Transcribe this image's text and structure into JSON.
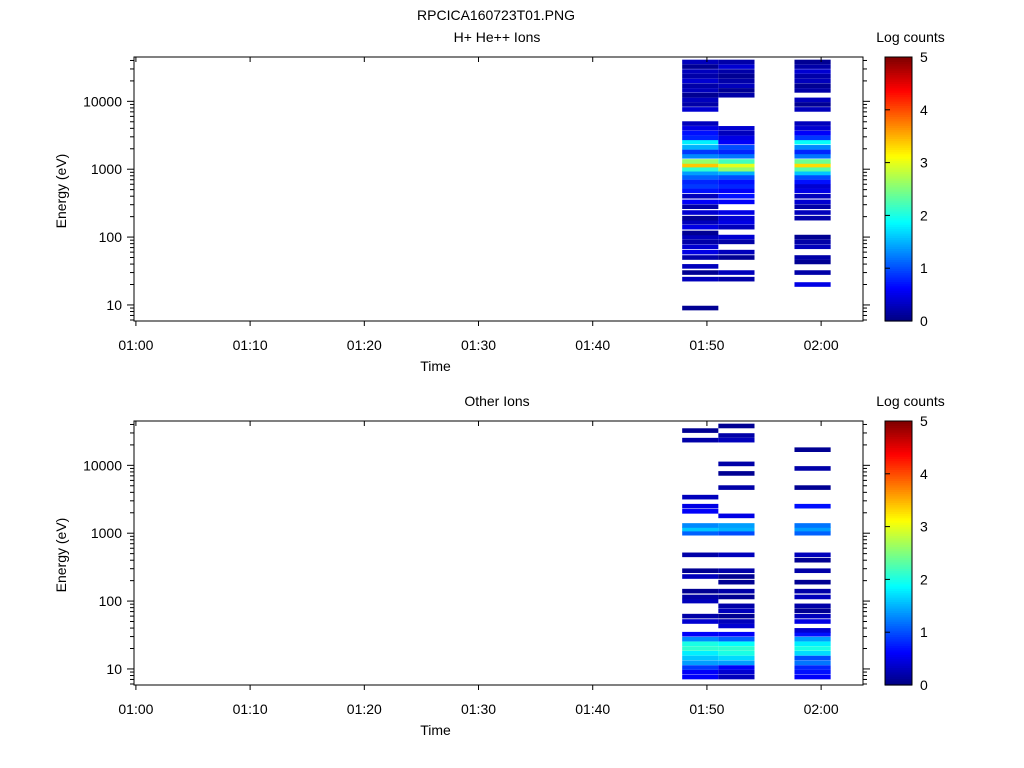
{
  "figure_title": "RPCICA160723T01.PNG",
  "colors": {
    "colormap": [
      "#00007f",
      "#0000ff",
      "#007fff",
      "#00ffff",
      "#7fff7f",
      "#ffff00",
      "#ff7f00",
      "#ff0000",
      "#7f0000"
    ],
    "axes": "#000000",
    "background": "#ffffff"
  },
  "chart_data": [
    {
      "type": "heatmap",
      "title": "H+ He++ Ions",
      "xlabel": "Time",
      "ylabel": "Energy (eV)",
      "x_scale": "time",
      "y_scale": "log",
      "xlim": [
        "00:59:50",
        "02:03:40"
      ],
      "ylim": [
        5.8,
        45000
      ],
      "x_ticks": [
        "01:00",
        "01:10",
        "01:20",
        "01:30",
        "01:40",
        "01:50",
        "02:00"
      ],
      "y_ticks": [
        10,
        100,
        1000,
        10000
      ],
      "y_tick_labels": [
        "10",
        "100",
        "1000",
        "10000"
      ],
      "colorbar": {
        "label": "Log counts",
        "range": [
          0,
          5
        ],
        "ticks": [
          "0",
          "1",
          "2",
          "3",
          "4",
          "5"
        ]
      },
      "columns": [
        {
          "t0": "01:47:50",
          "t1": "01:51:00",
          "bins": [
            {
              "e": 9,
              "v": 0.1
            },
            {
              "e": 24,
              "v": 0.3
            },
            {
              "e": 30,
              "v": 0.1
            },
            {
              "e": 37,
              "v": 0.3
            },
            {
              "e": 50,
              "v": 0.2
            },
            {
              "e": 60,
              "v": 0.5
            },
            {
              "e": 72,
              "v": 0.4
            },
            {
              "e": 85,
              "v": 0.2
            },
            {
              "e": 100,
              "v": 0.3
            },
            {
              "e": 115,
              "v": 0.1
            },
            {
              "e": 140,
              "v": 0.5
            },
            {
              "e": 165,
              "v": 0.3
            },
            {
              "e": 190,
              "v": 0.1
            },
            {
              "e": 230,
              "v": 0.4
            },
            {
              "e": 280,
              "v": 0.2
            },
            {
              "e": 330,
              "v": 0.6
            },
            {
              "e": 400,
              "v": 0.3
            },
            {
              "e": 480,
              "v": 0.7
            },
            {
              "e": 560,
              "v": 0.9
            },
            {
              "e": 650,
              "v": 0.8
            },
            {
              "e": 760,
              "v": 1.1
            },
            {
              "e": 880,
              "v": 1.4
            },
            {
              "e": 1000,
              "v": 2.1
            },
            {
              "e": 1150,
              "v": 3.4
            },
            {
              "e": 1300,
              "v": 2.6
            },
            {
              "e": 1550,
              "v": 1.3
            },
            {
              "e": 1800,
              "v": 0.9
            },
            {
              "e": 2100,
              "v": 1.5
            },
            {
              "e": 2500,
              "v": 1.8
            },
            {
              "e": 2900,
              "v": 0.8
            },
            {
              "e": 3400,
              "v": 0.7
            },
            {
              "e": 4000,
              "v": 0.5
            },
            {
              "e": 4700,
              "v": 0.3
            },
            {
              "e": 7600,
              "v": 0.4
            },
            {
              "e": 9000,
              "v": 0.2
            },
            {
              "e": 10500,
              "v": 0.3
            },
            {
              "e": 12300,
              "v": 0.1
            },
            {
              "e": 14500,
              "v": 0.3
            },
            {
              "e": 17000,
              "v": 0.2
            },
            {
              "e": 20000,
              "v": 0.4
            },
            {
              "e": 23500,
              "v": 0.2
            },
            {
              "e": 27500,
              "v": 0.3
            },
            {
              "e": 32500,
              "v": 0.1
            },
            {
              "e": 38000,
              "v": 0.3
            }
          ]
        },
        {
          "t0": "01:51:00",
          "t1": "01:54:10",
          "bins": [
            {
              "e": 24,
              "v": 0.2
            },
            {
              "e": 30,
              "v": 0.3
            },
            {
              "e": 50,
              "v": 0.1
            },
            {
              "e": 60,
              "v": 0.3
            },
            {
              "e": 85,
              "v": 0.2
            },
            {
              "e": 100,
              "v": 0.4
            },
            {
              "e": 140,
              "v": 0.3
            },
            {
              "e": 165,
              "v": 0.5
            },
            {
              "e": 190,
              "v": 0.4
            },
            {
              "e": 230,
              "v": 0.5
            },
            {
              "e": 330,
              "v": 0.6
            },
            {
              "e": 400,
              "v": 0.7
            },
            {
              "e": 480,
              "v": 0.6
            },
            {
              "e": 560,
              "v": 0.8
            },
            {
              "e": 650,
              "v": 0.7
            },
            {
              "e": 760,
              "v": 1.0
            },
            {
              "e": 880,
              "v": 1.5
            },
            {
              "e": 1000,
              "v": 2.6
            },
            {
              "e": 1150,
              "v": 3.0
            },
            {
              "e": 1300,
              "v": 2.2
            },
            {
              "e": 1550,
              "v": 1.2
            },
            {
              "e": 1800,
              "v": 0.8
            },
            {
              "e": 2100,
              "v": 1.0
            },
            {
              "e": 2500,
              "v": 0.6
            },
            {
              "e": 2900,
              "v": 0.5
            },
            {
              "e": 3400,
              "v": 0.3
            },
            {
              "e": 4000,
              "v": 0.4
            },
            {
              "e": 12300,
              "v": 0.2
            },
            {
              "e": 14500,
              "v": 0.1
            },
            {
              "e": 17000,
              "v": 0.3
            },
            {
              "e": 20000,
              "v": 0.2
            },
            {
              "e": 23500,
              "v": 0.1
            },
            {
              "e": 27500,
              "v": 0.2
            },
            {
              "e": 32500,
              "v": 0.4
            },
            {
              "e": 38000,
              "v": 0.2
            }
          ]
        },
        {
          "t0": "01:57:40",
          "t1": "02:00:50",
          "bins": [
            {
              "e": 20,
              "v": 0.5
            },
            {
              "e": 30,
              "v": 0.2
            },
            {
              "e": 43,
              "v": 0.1
            },
            {
              "e": 50,
              "v": 0.2
            },
            {
              "e": 72,
              "v": 0.3
            },
            {
              "e": 85,
              "v": 0.2
            },
            {
              "e": 100,
              "v": 0.1
            },
            {
              "e": 190,
              "v": 0.2
            },
            {
              "e": 230,
              "v": 0.3
            },
            {
              "e": 280,
              "v": 0.2
            },
            {
              "e": 330,
              "v": 0.4
            },
            {
              "e": 400,
              "v": 0.3
            },
            {
              "e": 480,
              "v": 0.5
            },
            {
              "e": 560,
              "v": 0.4
            },
            {
              "e": 650,
              "v": 0.7
            },
            {
              "e": 760,
              "v": 1.0
            },
            {
              "e": 880,
              "v": 1.6
            },
            {
              "e": 1000,
              "v": 2.3
            },
            {
              "e": 1150,
              "v": 3.3
            },
            {
              "e": 1300,
              "v": 2.4
            },
            {
              "e": 1550,
              "v": 1.2
            },
            {
              "e": 1800,
              "v": 0.8
            },
            {
              "e": 2100,
              "v": 1.3
            },
            {
              "e": 2500,
              "v": 1.9
            },
            {
              "e": 2900,
              "v": 0.9
            },
            {
              "e": 3400,
              "v": 0.6
            },
            {
              "e": 4000,
              "v": 0.4
            },
            {
              "e": 4700,
              "v": 0.3
            },
            {
              "e": 7600,
              "v": 0.3
            },
            {
              "e": 9000,
              "v": 0.1
            },
            {
              "e": 10500,
              "v": 0.3
            },
            {
              "e": 14500,
              "v": 0.2
            },
            {
              "e": 17000,
              "v": 0.1
            },
            {
              "e": 20000,
              "v": 0.3
            },
            {
              "e": 23500,
              "v": 0.2
            },
            {
              "e": 27500,
              "v": 0.4
            },
            {
              "e": 32500,
              "v": 0.2
            },
            {
              "e": 38000,
              "v": 0.1
            }
          ]
        }
      ]
    },
    {
      "type": "heatmap",
      "title": "Other Ions",
      "xlabel": "Time",
      "ylabel": "Energy (eV)",
      "x_scale": "time",
      "y_scale": "log",
      "xlim": [
        "00:59:50",
        "02:03:40"
      ],
      "ylim": [
        5.8,
        45000
      ],
      "x_ticks": [
        "01:00",
        "01:10",
        "01:20",
        "01:30",
        "01:40",
        "01:50",
        "02:00"
      ],
      "y_ticks": [
        10,
        100,
        1000,
        10000
      ],
      "y_tick_labels": [
        "10",
        "100",
        "1000",
        "10000"
      ],
      "colorbar": {
        "label": "Log counts",
        "range": [
          0,
          5
        ],
        "ticks": [
          "0",
          "1",
          "2",
          "3",
          "4",
          "5"
        ]
      },
      "columns": [
        {
          "t0": "01:47:50",
          "t1": "01:51:00",
          "bins": [
            {
              "e": 7.6,
              "v": 0.6
            },
            {
              "e": 9,
              "v": 0.6
            },
            {
              "e": 10.5,
              "v": 0.9
            },
            {
              "e": 12.3,
              "v": 1.4
            },
            {
              "e": 14.5,
              "v": 1.6
            },
            {
              "e": 17,
              "v": 1.8
            },
            {
              "e": 20,
              "v": 2.1
            },
            {
              "e": 23.5,
              "v": 2.0
            },
            {
              "e": 27.5,
              "v": 1.3
            },
            {
              "e": 32.5,
              "v": 0.6
            },
            {
              "e": 50,
              "v": 0.4
            },
            {
              "e": 60,
              "v": 0.2
            },
            {
              "e": 100,
              "v": 0.3
            },
            {
              "e": 115,
              "v": 0.2
            },
            {
              "e": 140,
              "v": 0.1
            },
            {
              "e": 230,
              "v": 0.3
            },
            {
              "e": 280,
              "v": 0.1
            },
            {
              "e": 480,
              "v": 0.2
            },
            {
              "e": 1000,
              "v": 1.1
            },
            {
              "e": 1150,
              "v": 1.6
            },
            {
              "e": 1300,
              "v": 1.3
            },
            {
              "e": 2100,
              "v": 0.6
            },
            {
              "e": 2500,
              "v": 0.5
            },
            {
              "e": 3400,
              "v": 0.3
            },
            {
              "e": 23500,
              "v": 0.2
            },
            {
              "e": 32500,
              "v": 0.1
            }
          ]
        },
        {
          "t0": "01:51:00",
          "t1": "01:54:10",
          "bins": [
            {
              "e": 7.6,
              "v": 0.3
            },
            {
              "e": 9,
              "v": 0.4
            },
            {
              "e": 10.5,
              "v": 0.6
            },
            {
              "e": 12.3,
              "v": 1.4
            },
            {
              "e": 14.5,
              "v": 1.7
            },
            {
              "e": 17,
              "v": 2.0
            },
            {
              "e": 20,
              "v": 2.1
            },
            {
              "e": 23.5,
              "v": 1.9
            },
            {
              "e": 27.5,
              "v": 1.1
            },
            {
              "e": 32.5,
              "v": 0.6
            },
            {
              "e": 43,
              "v": 0.4
            },
            {
              "e": 50,
              "v": 0.3
            },
            {
              "e": 60,
              "v": 0.1
            },
            {
              "e": 72,
              "v": 0.3
            },
            {
              "e": 85,
              "v": 0.2
            },
            {
              "e": 115,
              "v": 0.1
            },
            {
              "e": 140,
              "v": 0.2
            },
            {
              "e": 190,
              "v": 0.1
            },
            {
              "e": 230,
              "v": 0.1
            },
            {
              "e": 280,
              "v": 0.2
            },
            {
              "e": 480,
              "v": 0.3
            },
            {
              "e": 1000,
              "v": 1.0
            },
            {
              "e": 1150,
              "v": 1.5
            },
            {
              "e": 1300,
              "v": 1.4
            },
            {
              "e": 1800,
              "v": 0.5
            },
            {
              "e": 4700,
              "v": 0.2
            },
            {
              "e": 7600,
              "v": 0.1
            },
            {
              "e": 10500,
              "v": 0.2
            },
            {
              "e": 23500,
              "v": 0.3
            },
            {
              "e": 27500,
              "v": 0.2
            },
            {
              "e": 38000,
              "v": 0.1
            }
          ]
        },
        {
          "t0": "01:57:40",
          "t1": "02:00:50",
          "bins": [
            {
              "e": 7.6,
              "v": 0.6
            },
            {
              "e": 9,
              "v": 0.7
            },
            {
              "e": 10.5,
              "v": 0.8
            },
            {
              "e": 12.3,
              "v": 1.2
            },
            {
              "e": 14.5,
              "v": 1.0
            },
            {
              "e": 17,
              "v": 1.7
            },
            {
              "e": 20,
              "v": 2.0
            },
            {
              "e": 23.5,
              "v": 1.8
            },
            {
              "e": 27.5,
              "v": 1.4
            },
            {
              "e": 32.5,
              "v": 0.7
            },
            {
              "e": 37,
              "v": 0.4
            },
            {
              "e": 50,
              "v": 0.5
            },
            {
              "e": 60,
              "v": 0.3
            },
            {
              "e": 72,
              "v": 0.1
            },
            {
              "e": 85,
              "v": 0.2
            },
            {
              "e": 115,
              "v": 0.3
            },
            {
              "e": 140,
              "v": 0.2
            },
            {
              "e": 190,
              "v": 0.1
            },
            {
              "e": 280,
              "v": 0.2
            },
            {
              "e": 400,
              "v": 0.1
            },
            {
              "e": 480,
              "v": 0.3
            },
            {
              "e": 1000,
              "v": 1.1
            },
            {
              "e": 1150,
              "v": 1.4
            },
            {
              "e": 1300,
              "v": 1.2
            },
            {
              "e": 2500,
              "v": 0.7
            },
            {
              "e": 4700,
              "v": 0.1
            },
            {
              "e": 9000,
              "v": 0.2
            },
            {
              "e": 17000,
              "v": 0.1
            }
          ]
        }
      ]
    }
  ]
}
